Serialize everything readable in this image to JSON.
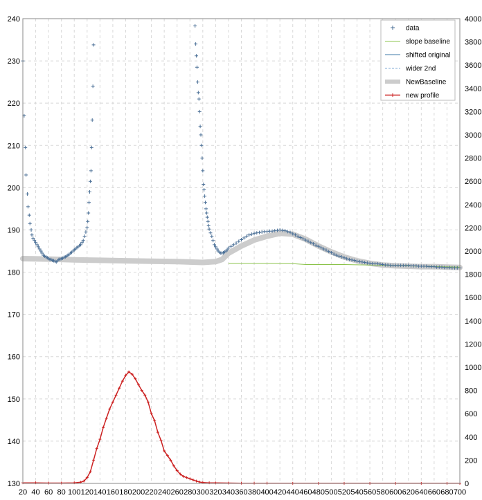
{
  "chart_data": {
    "type": "scatter",
    "title": "",
    "xlabel": "",
    "ylabel": "",
    "xlim": [
      20,
      700
    ],
    "ylim": [
      130,
      240
    ],
    "y2lim": [
      0,
      4000
    ],
    "grid": true,
    "legend_position": "top-right",
    "x_ticks": [
      20,
      40,
      60,
      80,
      100,
      120,
      140,
      160,
      180,
      200,
      220,
      240,
      260,
      280,
      300,
      320,
      340,
      360,
      380,
      400,
      420,
      440,
      460,
      480,
      500,
      520,
      540,
      560,
      580,
      600,
      620,
      640,
      660,
      680,
      700
    ],
    "y_ticks": [
      130,
      140,
      150,
      160,
      170,
      180,
      190,
      200,
      210,
      220,
      230,
      240
    ],
    "y2_ticks": [
      0,
      200,
      400,
      600,
      800,
      1000,
      1200,
      1400,
      1600,
      1800,
      2000,
      2200,
      2400,
      2600,
      2800,
      3000,
      3200,
      3400,
      3600,
      3800,
      4000
    ],
    "legend": [
      {
        "label": "data",
        "color": "#4a6f96",
        "marker": "plus"
      },
      {
        "label": "slope baseline",
        "color": "#8bc34a",
        "marker": "line"
      },
      {
        "label": "shifted original",
        "color": "#3d7aa8",
        "marker": "line"
      },
      {
        "label": "wider 2nd",
        "color": "#6fa0d0",
        "marker": "dashed"
      },
      {
        "label": "NewBaseline",
        "color": "#cccccc",
        "marker": "thick"
      },
      {
        "label": "new profile",
        "color": "#cc2222",
        "marker": "line-plus"
      }
    ],
    "series": [
      {
        "name": "data",
        "axis": "left",
        "points": [
          [
            20,
            230
          ],
          [
            22,
            217
          ],
          [
            24,
            209.5
          ],
          [
            25,
            203
          ],
          [
            27,
            198.5
          ],
          [
            28,
            195.5
          ],
          [
            30,
            193.5
          ],
          [
            31,
            191.5
          ],
          [
            33,
            190
          ],
          [
            34,
            188.8
          ],
          [
            36,
            188
          ],
          [
            38,
            187.5
          ],
          [
            40,
            187
          ],
          [
            42,
            186.5
          ],
          [
            44,
            186
          ],
          [
            46,
            185.5
          ],
          [
            48,
            185
          ],
          [
            50,
            184.5
          ],
          [
            52,
            184
          ],
          [
            54,
            183.8
          ],
          [
            56,
            183.6
          ],
          [
            58,
            183.4
          ],
          [
            60,
            183.2
          ],
          [
            62,
            183
          ],
          [
            64,
            183
          ],
          [
            66,
            182.8
          ],
          [
            68,
            182.7
          ],
          [
            70,
            182.6
          ],
          [
            72,
            182.4
          ],
          [
            74,
            182.7
          ],
          [
            76,
            183
          ],
          [
            78,
            183.1
          ],
          [
            80,
            183.2
          ],
          [
            82,
            183.3
          ],
          [
            84,
            183.5
          ],
          [
            86,
            183.6
          ],
          [
            88,
            183.8
          ],
          [
            90,
            184
          ],
          [
            92,
            184.2
          ],
          [
            94,
            184.5
          ],
          [
            96,
            184.7
          ],
          [
            98,
            185
          ],
          [
            100,
            185.3
          ],
          [
            102,
            185.5
          ],
          [
            104,
            185.8
          ],
          [
            106,
            186
          ],
          [
            108,
            186.3
          ],
          [
            110,
            186.5
          ],
          [
            112,
            187
          ],
          [
            114,
            187.5
          ],
          [
            116,
            188.5
          ],
          [
            118,
            189.5
          ],
          [
            120,
            190.5
          ],
          [
            121,
            192
          ],
          [
            122,
            194
          ],
          [
            123,
            196.5
          ],
          [
            124,
            199
          ],
          [
            125,
            201.5
          ],
          [
            126,
            204
          ],
          [
            127,
            209.5
          ],
          [
            128,
            216
          ],
          [
            129,
            224
          ],
          [
            130,
            233.8
          ],
          [
            288,
            238.3
          ],
          [
            289,
            234
          ],
          [
            290,
            231.2
          ],
          [
            291,
            228.5
          ],
          [
            292,
            225
          ],
          [
            293,
            222.5
          ],
          [
            294,
            221
          ],
          [
            295,
            218
          ],
          [
            296,
            214.5
          ],
          [
            297,
            212.5
          ],
          [
            298,
            210
          ],
          [
            299,
            207
          ],
          [
            300,
            204
          ],
          [
            301,
            200.8
          ],
          [
            302,
            199.5
          ],
          [
            303,
            198
          ],
          [
            304,
            196.5
          ],
          [
            305,
            195
          ],
          [
            306,
            194
          ],
          [
            307,
            193
          ],
          [
            308,
            192
          ],
          [
            309,
            191
          ],
          [
            310,
            190.2
          ],
          [
            312,
            189.3
          ],
          [
            314,
            188.5
          ],
          [
            316,
            187.5
          ],
          [
            318,
            186.5
          ],
          [
            320,
            186
          ],
          [
            322,
            185.5
          ],
          [
            324,
            185
          ],
          [
            326,
            184.7
          ],
          [
            328,
            184.5
          ],
          [
            330,
            184.5
          ],
          [
            332,
            184.6
          ],
          [
            334,
            184.8
          ],
          [
            336,
            185
          ],
          [
            338,
            185.3
          ],
          [
            340,
            185.7
          ],
          [
            344,
            186.1
          ],
          [
            348,
            186.5
          ],
          [
            352,
            186.9
          ],
          [
            356,
            187.3
          ],
          [
            360,
            187.7
          ],
          [
            364,
            188.1
          ],
          [
            368,
            188.5
          ],
          [
            372,
            188.8
          ],
          [
            376,
            189
          ],
          [
            380,
            189.2
          ],
          [
            384,
            189.3
          ],
          [
            388,
            189.4
          ],
          [
            392,
            189.5
          ],
          [
            396,
            189.6
          ],
          [
            400,
            189.6
          ],
          [
            404,
            189.7
          ],
          [
            408,
            189.7
          ],
          [
            412,
            189.8
          ],
          [
            416,
            189.9
          ],
          [
            420,
            190
          ],
          [
            424,
            189.9
          ],
          [
            428,
            189.8
          ],
          [
            432,
            189.6
          ],
          [
            436,
            189.4
          ],
          [
            440,
            189.1
          ],
          [
            444,
            188.8
          ],
          [
            448,
            188.5
          ],
          [
            452,
            188.2
          ],
          [
            456,
            187.9
          ],
          [
            460,
            187.6
          ],
          [
            464,
            187.3
          ],
          [
            468,
            187
          ],
          [
            472,
            186.7
          ],
          [
            476,
            186.4
          ],
          [
            480,
            186.1
          ],
          [
            484,
            185.8
          ],
          [
            488,
            185.5
          ],
          [
            492,
            185.2
          ],
          [
            496,
            184.9
          ],
          [
            500,
            184.6
          ],
          [
            504,
            184.3
          ],
          [
            508,
            184
          ],
          [
            512,
            183.8
          ],
          [
            516,
            183.6
          ],
          [
            520,
            183.4
          ],
          [
            524,
            183.2
          ],
          [
            528,
            183
          ],
          [
            532,
            182.9
          ],
          [
            536,
            182.8
          ],
          [
            540,
            182.6
          ],
          [
            544,
            182.5
          ],
          [
            548,
            182.4
          ],
          [
            552,
            182.3
          ],
          [
            556,
            182.2
          ],
          [
            560,
            182.1
          ],
          [
            564,
            182
          ],
          [
            568,
            182
          ],
          [
            572,
            182
          ],
          [
            576,
            181.9
          ],
          [
            580,
            181.8
          ],
          [
            584,
            181.7
          ],
          [
            588,
            181.7
          ],
          [
            592,
            181.6
          ],
          [
            596,
            181.6
          ],
          [
            600,
            181.6
          ],
          [
            604,
            181.6
          ],
          [
            608,
            181.6
          ],
          [
            612,
            181.6
          ],
          [
            616,
            181.6
          ],
          [
            620,
            181.6
          ],
          [
            624,
            181.5
          ],
          [
            628,
            181.5
          ],
          [
            632,
            181.5
          ],
          [
            636,
            181.4
          ],
          [
            640,
            181.4
          ],
          [
            644,
            181.4
          ],
          [
            648,
            181.4
          ],
          [
            652,
            181.3
          ],
          [
            656,
            181.3
          ],
          [
            660,
            181.3
          ],
          [
            664,
            181.2
          ],
          [
            668,
            181.2
          ],
          [
            672,
            181.2
          ],
          [
            676,
            181.1
          ],
          [
            680,
            181.1
          ],
          [
            684,
            181.1
          ],
          [
            688,
            181
          ],
          [
            692,
            181
          ],
          [
            696,
            181
          ],
          [
            700,
            181
          ]
        ]
      },
      {
        "name": "NewBaseline",
        "axis": "left",
        "points": [
          [
            20,
            183.2
          ],
          [
            60,
            183.1
          ],
          [
            100,
            182.9
          ],
          [
            140,
            182.8
          ],
          [
            180,
            182.7
          ],
          [
            220,
            182.6
          ],
          [
            260,
            182.5
          ],
          [
            300,
            182.3
          ],
          [
            320,
            182.5
          ],
          [
            330,
            183
          ],
          [
            340,
            184.5
          ],
          [
            360,
            186.2
          ],
          [
            380,
            187.6
          ],
          [
            400,
            188.5
          ],
          [
            420,
            189.2
          ],
          [
            440,
            189
          ],
          [
            460,
            187.8
          ],
          [
            480,
            186.2
          ],
          [
            500,
            184.8
          ],
          [
            520,
            183.6
          ],
          [
            540,
            182.7
          ],
          [
            560,
            182.1
          ],
          [
            580,
            181.7
          ],
          [
            600,
            181.5
          ],
          [
            620,
            181.4
          ],
          [
            640,
            181.3
          ],
          [
            660,
            181.3
          ],
          [
            680,
            181.2
          ],
          [
            700,
            181.1
          ]
        ]
      },
      {
        "name": "slope baseline",
        "axis": "left",
        "points": [
          [
            340,
            182.1
          ],
          [
            400,
            182.1
          ],
          [
            440,
            182
          ],
          [
            460,
            181.8
          ],
          [
            520,
            181.8
          ],
          [
            560,
            181.7
          ],
          [
            600,
            181.6
          ],
          [
            640,
            181.4
          ],
          [
            700,
            181.2
          ]
        ]
      },
      {
        "name": "new profile",
        "axis": "right",
        "points": [
          [
            20,
            5
          ],
          [
            40,
            5
          ],
          [
            60,
            3
          ],
          [
            80,
            3
          ],
          [
            100,
            5
          ],
          [
            110,
            10
          ],
          [
            115,
            20
          ],
          [
            120,
            50
          ],
          [
            125,
            100
          ],
          [
            130,
            200
          ],
          [
            135,
            300
          ],
          [
            140,
            380
          ],
          [
            145,
            480
          ],
          [
            150,
            560
          ],
          [
            155,
            640
          ],
          [
            160,
            700
          ],
          [
            165,
            760
          ],
          [
            170,
            820
          ],
          [
            175,
            880
          ],
          [
            180,
            930
          ],
          [
            185,
            960
          ],
          [
            190,
            940
          ],
          [
            195,
            900
          ],
          [
            200,
            850
          ],
          [
            205,
            800
          ],
          [
            210,
            760
          ],
          [
            215,
            700
          ],
          [
            220,
            600
          ],
          [
            225,
            540
          ],
          [
            230,
            440
          ],
          [
            235,
            370
          ],
          [
            240,
            280
          ],
          [
            245,
            240
          ],
          [
            250,
            200
          ],
          [
            255,
            150
          ],
          [
            260,
            110
          ],
          [
            265,
            80
          ],
          [
            270,
            60
          ],
          [
            275,
            50
          ],
          [
            280,
            40
          ],
          [
            285,
            30
          ],
          [
            290,
            20
          ],
          [
            295,
            12
          ],
          [
            300,
            8
          ],
          [
            310,
            5
          ],
          [
            320,
            4
          ],
          [
            340,
            3
          ],
          [
            360,
            2
          ],
          [
            380,
            2
          ],
          [
            400,
            2
          ],
          [
            440,
            1
          ],
          [
            480,
            1
          ],
          [
            520,
            1
          ],
          [
            560,
            1
          ],
          [
            600,
            1
          ],
          [
            640,
            1
          ],
          [
            680,
            1
          ],
          [
            700,
            1
          ]
        ]
      }
    ]
  }
}
